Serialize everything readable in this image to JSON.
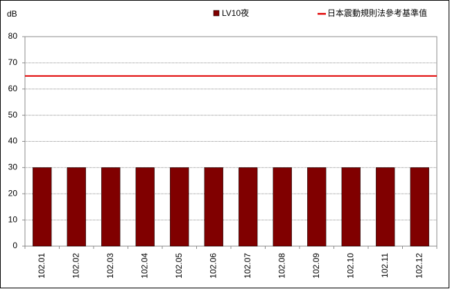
{
  "chart_data": {
    "type": "bar",
    "y_label": "dB",
    "categories": [
      "102.01",
      "102.02",
      "102.03",
      "102.04",
      "102.05",
      "102.06",
      "102.07",
      "102.08",
      "102.09",
      "102.10",
      "102.11",
      "102.12"
    ],
    "series": [
      {
        "name": "LV10夜",
        "color": "#800000",
        "values": [
          30,
          30,
          30,
          30,
          30,
          30,
          30,
          30,
          30,
          30,
          30,
          30
        ]
      }
    ],
    "reference": {
      "name": "日本震動規則法參考基準值",
      "color": "#e00000",
      "value": 65
    },
    "ylim": [
      0,
      80
    ],
    "yticks": [
      0,
      10,
      20,
      30,
      40,
      50,
      60,
      70,
      80
    ],
    "grid": true
  }
}
